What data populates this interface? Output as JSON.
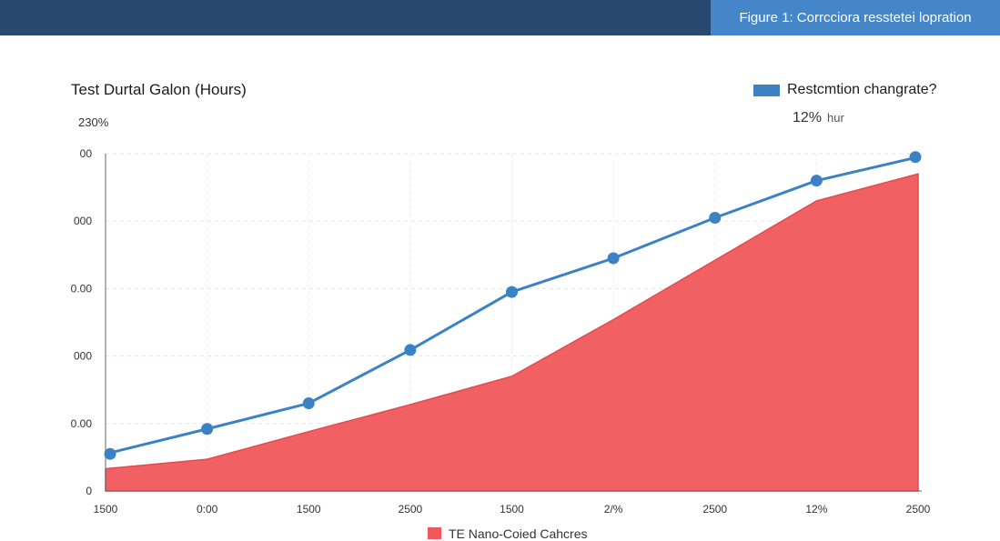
{
  "header": {
    "figure_label": "Figure 1: Corrcciora resstetei lopration"
  },
  "colors": {
    "header_bg": "#27496f",
    "badge_bg": "#4586c8",
    "line_series": "#3b82c4",
    "area_series": "#f0595b"
  },
  "chart_data": {
    "type": "line",
    "title": "Test Durtal Galon (Hours)",
    "y_top_label": "230%",
    "x_tick_labels": [
      "1500",
      "0:00",
      "1500",
      "2500",
      "1500",
      "2/%",
      "2500",
      "12%",
      "2500"
    ],
    "y_tick_labels": [
      "0",
      "0.00",
      "000",
      "0.00",
      "000",
      "00"
    ],
    "ylim": [
      0,
      5
    ],
    "grid": true,
    "series": [
      {
        "name": "Restcmtion changrate?",
        "kind": "line",
        "values": [
          0.55,
          0.92,
          1.3,
          2.09,
          2.95,
          3.45,
          4.05,
          4.6,
          4.95
        ]
      },
      {
        "name": "TE Nano-Coied Cahcres",
        "kind": "area",
        "values": [
          0.33,
          0.47,
          0.88,
          1.28,
          1.7,
          2.54,
          3.42,
          4.3,
          4.7
        ]
      }
    ],
    "legend": {
      "top": {
        "label": "Restcmtion changrate?",
        "sub_value": "12%",
        "sub_unit": "hur",
        "placement": "top-right"
      },
      "bottom": {
        "label": "TE Nano-Coied Cahcres",
        "placement": "bottom-center"
      }
    }
  }
}
